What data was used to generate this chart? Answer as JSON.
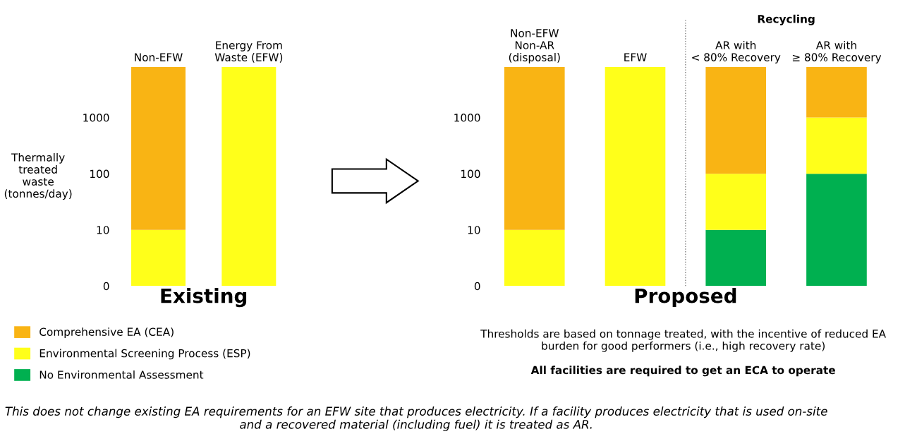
{
  "chart_data": [
    {
      "type": "bar",
      "stacked": true,
      "log": "y",
      "xlabel": "Existing",
      "ylabel": "Thermally\ntreated\nwaste\n(tonnes/day)",
      "categories": [
        "Non-EFW",
        "Energy From\nWaste (EFW)"
      ],
      "series": [
        {
          "name": "No Environmental Assessment",
          "color": "#00b050",
          "values": [
            0,
            0
          ]
        },
        {
          "name": "Environmental Screening Process (ESP)",
          "color": "#ffff1a",
          "values": [
            10,
            8000
          ]
        },
        {
          "name": "Comprehensive EA (CEA)",
          "color": "#f9b414",
          "values": [
            7990,
            0
          ]
        }
      ],
      "ylim": [
        0,
        8000
      ],
      "yticks": [
        0,
        10,
        100,
        1000
      ],
      "grid": false,
      "legend": "bottom left"
    },
    {
      "type": "bar",
      "stacked": true,
      "log": "y",
      "xlabel": "Proposed",
      "categories": [
        "Non-EFW\nNon-AR\n(disposal)",
        "EFW",
        "AR with\n< 80% Recovery",
        "AR with\n≥ 80% Recovery"
      ],
      "series": [
        {
          "color": "#00b050",
          "values": [
            0,
            0,
            10,
            100
          ]
        },
        {
          "color": "#ffff1a",
          "values": [
            10,
            8000,
            90,
            900
          ]
        },
        {
          "color": "#f9b414",
          "values": [
            7990,
            0,
            7900,
            7000
          ]
        }
      ],
      "ylim": [
        0,
        8000
      ],
      "yticks": [
        0,
        10,
        100,
        1000
      ],
      "grid": false,
      "annotations": [
        "Recycling",
        "Thresholds are based on tonnage treated, with the incentive of reduced EA burden for good performers (i.e., high recovery rate)",
        "All facilities are required to get an ECA to operate",
        "This does not change existing EA requirements for an EFW site that produces electricity. If a facility produces electricity that is used on-site and a recovered material (including fuel) it is treated as AR."
      ]
    }
  ]
}
